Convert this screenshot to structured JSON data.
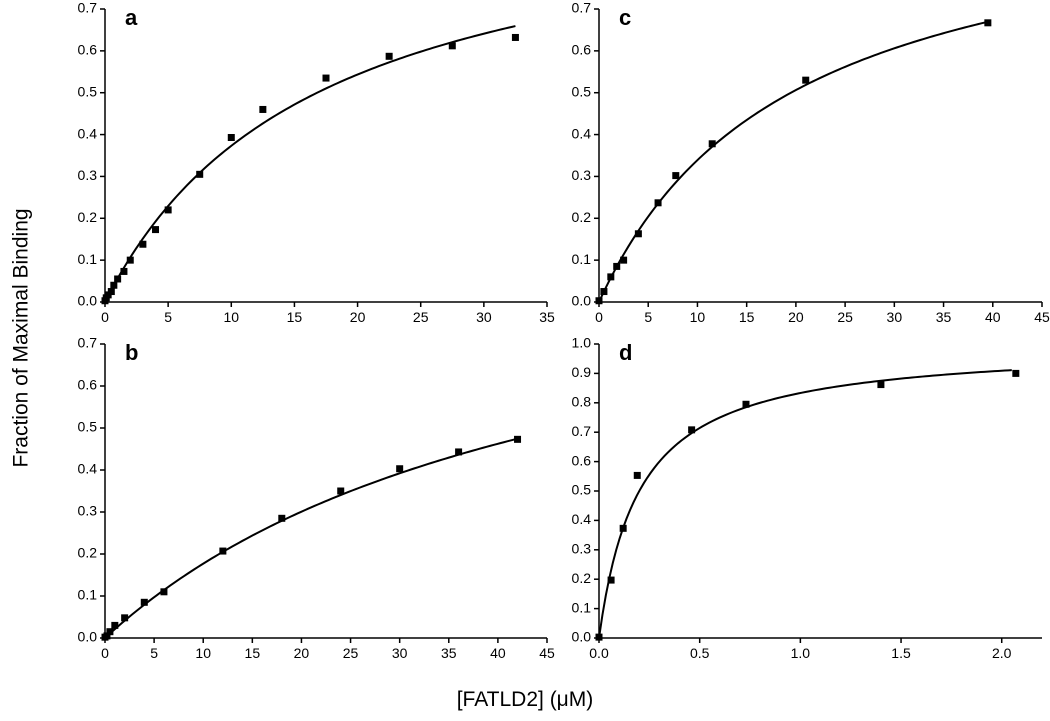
{
  "figure": {
    "ylabel": "Fraction of Maximal Binding",
    "xlabel": "[FATLD2] (μM)"
  },
  "chart_data": [
    {
      "type": "scatter",
      "panel_label": "a",
      "xlim": [
        0,
        35
      ],
      "ylim": [
        0,
        0.7
      ],
      "xticks": [
        "0",
        "5",
        "10",
        "15",
        "20",
        "25",
        "30",
        "35"
      ],
      "yticks": [
        "0.0",
        "0.1",
        "0.2",
        "0.3",
        "0.4",
        "0.5",
        "0.6",
        "0.7"
      ],
      "points": {
        "x": [
          0,
          0.1,
          0.25,
          0.5,
          0.7,
          1.0,
          1.5,
          2.0,
          3.0,
          4.0,
          5.0,
          7.5,
          10.0,
          12.5,
          17.5,
          22.5,
          27.5,
          32.5
        ],
        "y": [
          0.003,
          0.01,
          0.017,
          0.025,
          0.04,
          0.055,
          0.073,
          0.1,
          0.138,
          0.173,
          0.22,
          0.305,
          0.393,
          0.46,
          0.535,
          0.587,
          0.612,
          0.632
        ]
      },
      "fit": {
        "model": "hyperbola",
        "Bmax": 1.0,
        "Kd": 16.8,
        "x_max": 32.5
      }
    },
    {
      "type": "scatter",
      "panel_label": "c",
      "xlim": [
        0,
        45
      ],
      "ylim": [
        0,
        0.7
      ],
      "xticks": [
        "0",
        "5",
        "10",
        "15",
        "20",
        "25",
        "30",
        "35",
        "40",
        "45"
      ],
      "yticks": [
        "0.0",
        "0.1",
        "0.2",
        "0.3",
        "0.4",
        "0.5",
        "0.6",
        "0.7"
      ],
      "points": {
        "x": [
          0,
          0.5,
          1.2,
          1.8,
          2.5,
          4.0,
          6.0,
          7.8,
          11.5,
          21.0,
          39.5
        ],
        "y": [
          0.003,
          0.025,
          0.06,
          0.085,
          0.1,
          0.163,
          0.237,
          0.302,
          0.378,
          0.53,
          0.667
        ]
      },
      "fit": {
        "model": "hyperbola",
        "Bmax": 1.0,
        "Kd": 19.5,
        "x_max": 39.5
      }
    },
    {
      "type": "scatter",
      "panel_label": "b",
      "xlim": [
        0,
        45
      ],
      "ylim": [
        0,
        0.7
      ],
      "xticks": [
        "0",
        "5",
        "10",
        "15",
        "20",
        "25",
        "30",
        "35",
        "40",
        "45"
      ],
      "yticks": [
        "0.0",
        "0.1",
        "0.2",
        "0.3",
        "0.4",
        "0.5",
        "0.6",
        "0.7"
      ],
      "points": {
        "x": [
          0,
          0.2,
          0.5,
          1.0,
          2.0,
          4.0,
          6.0,
          12.0,
          18.0,
          24.0,
          30.0,
          36.0,
          42.0
        ],
        "y": [
          0.002,
          0.005,
          0.015,
          0.03,
          0.048,
          0.085,
          0.11,
          0.207,
          0.285,
          0.35,
          0.403,
          0.443,
          0.473
        ]
      },
      "fit": {
        "model": "hyperbola",
        "Bmax": 1.0,
        "Kd": 46.5,
        "x_max": 42.0
      }
    },
    {
      "type": "scatter",
      "panel_label": "d",
      "xlim": [
        0,
        2.2
      ],
      "ylim": [
        0,
        1.0
      ],
      "xticks": [
        "0.0",
        "0.5",
        "1.0",
        "1.5",
        "2.0"
      ],
      "yticks": [
        "0.0",
        "0.1",
        "0.2",
        "0.3",
        "0.4",
        "0.5",
        "0.6",
        "0.7",
        "0.8",
        "0.9",
        "1.0"
      ],
      "points": {
        "x": [
          0.0,
          0.06,
          0.12,
          0.19,
          0.46,
          0.73,
          1.4,
          2.07
        ],
        "y": [
          0.003,
          0.197,
          0.373,
          0.553,
          0.708,
          0.795,
          0.862,
          0.9
        ]
      },
      "fit": {
        "model": "hyperbola",
        "Bmax": 1.0,
        "Kd": 0.2,
        "x_max": 2.05
      }
    }
  ]
}
